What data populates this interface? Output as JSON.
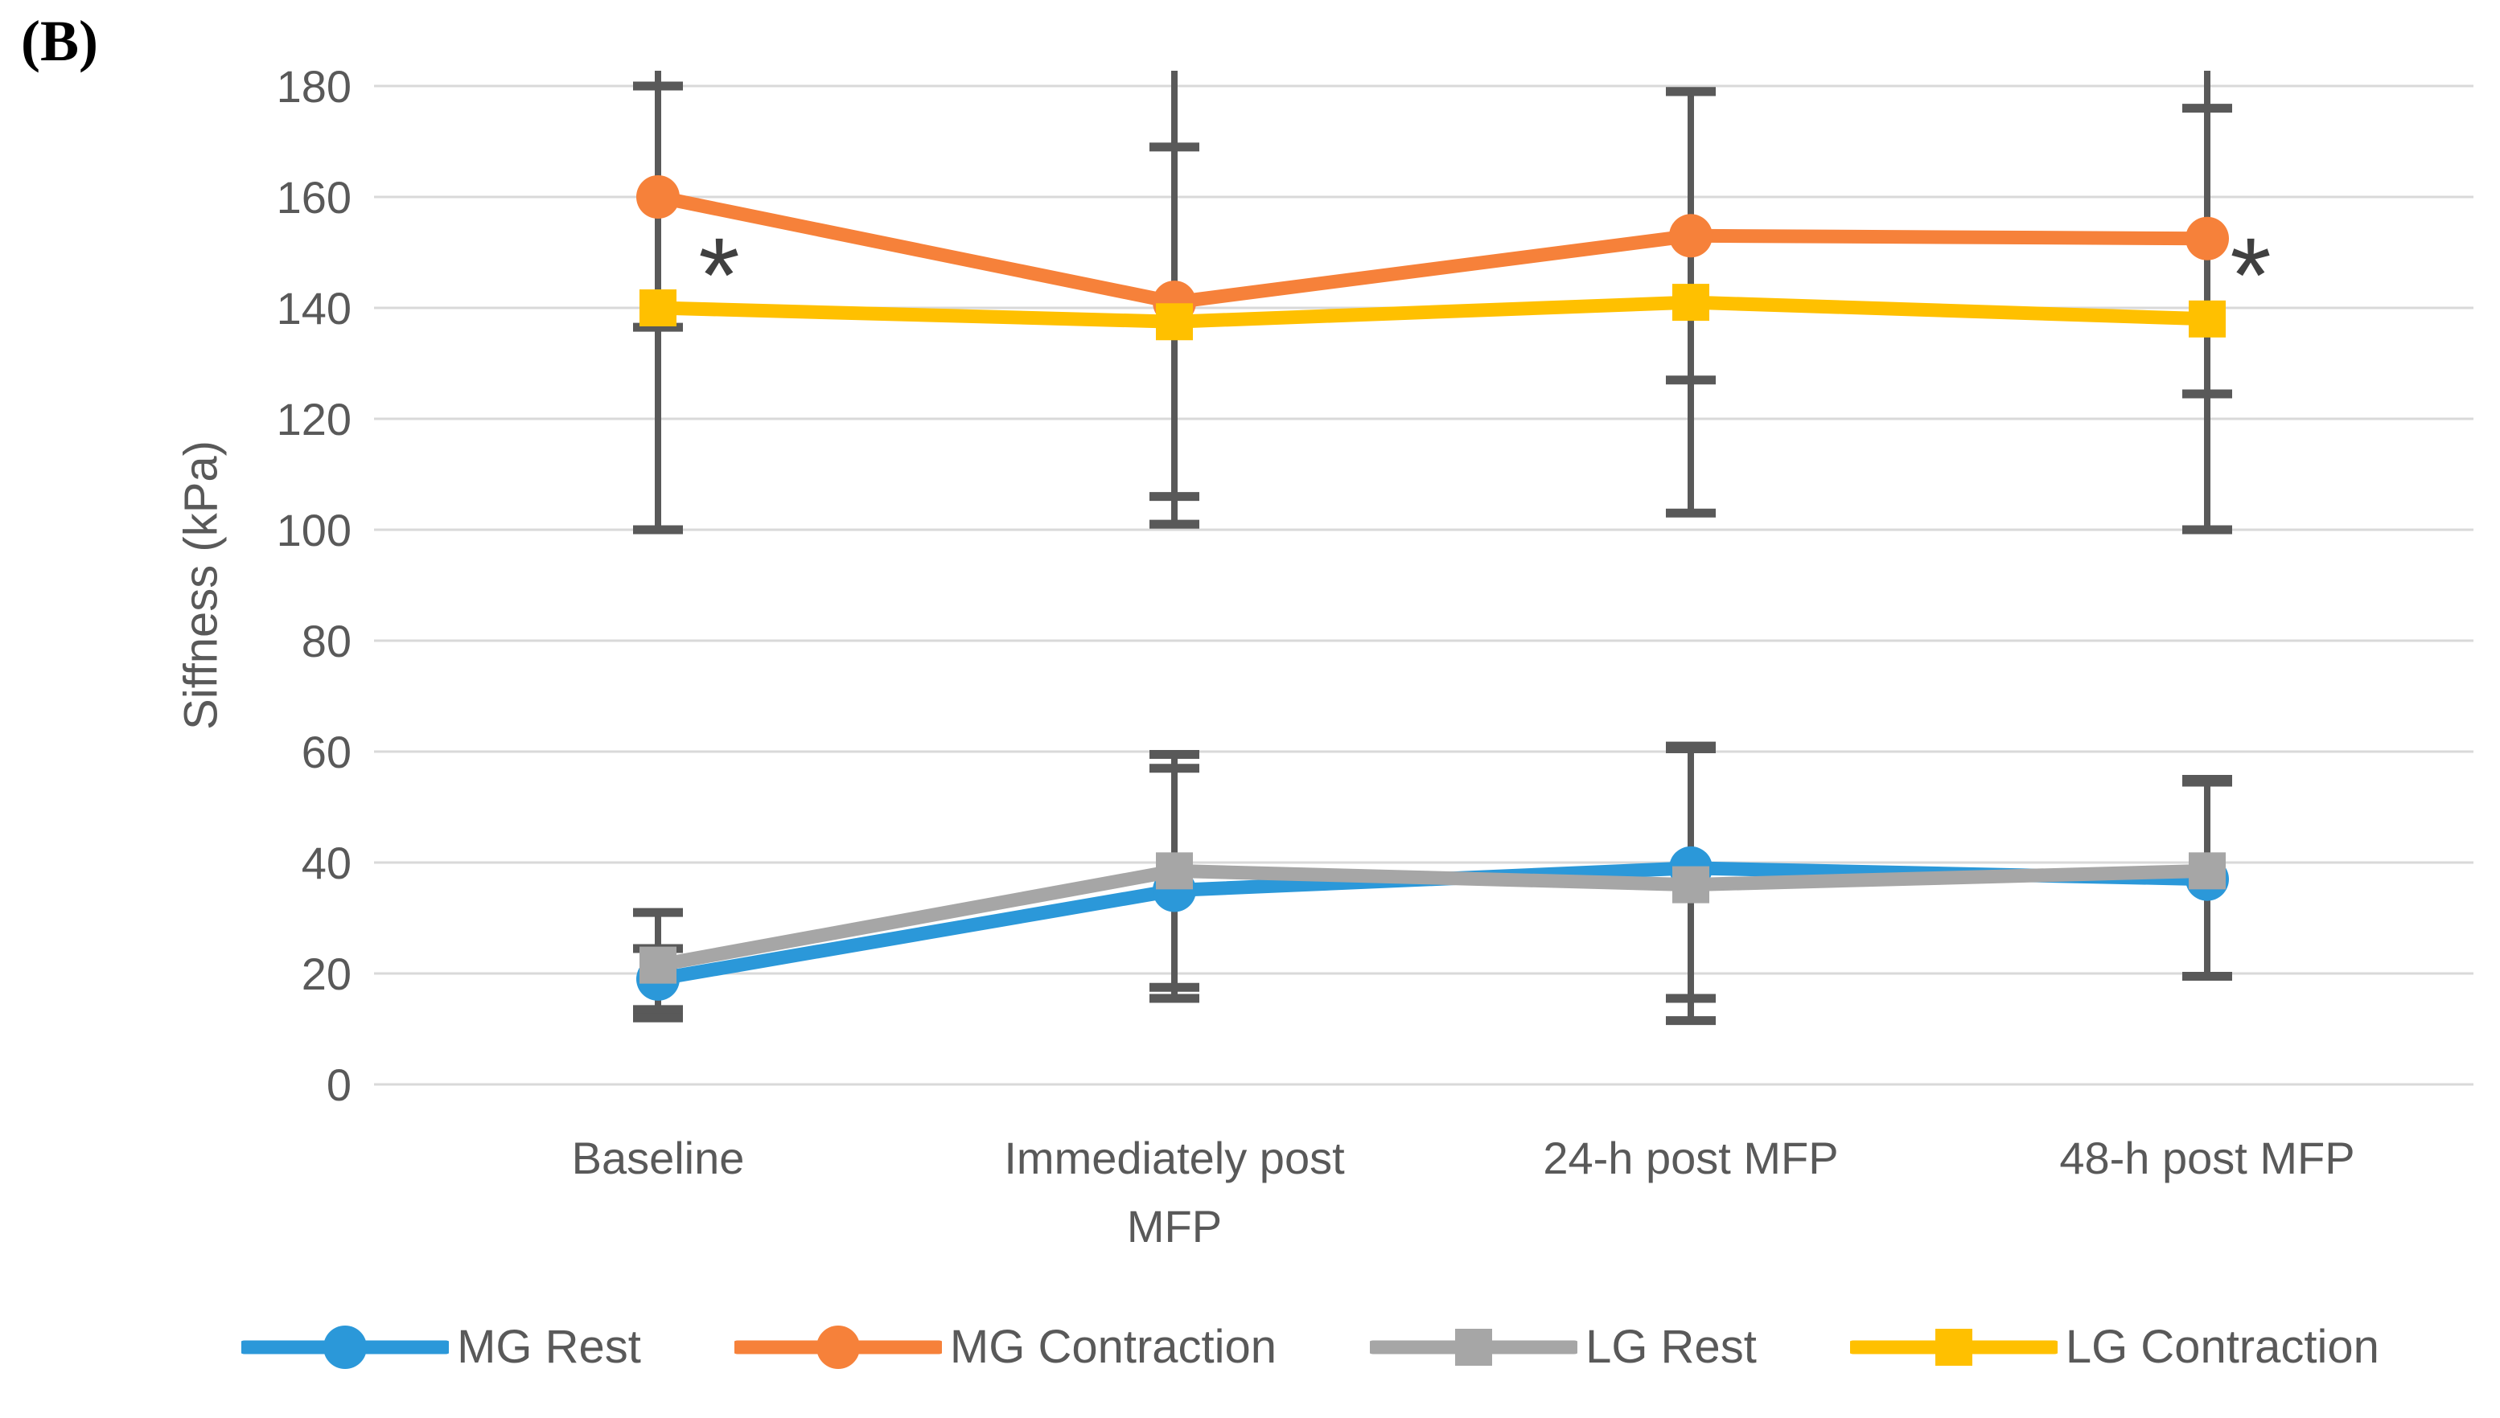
{
  "panel_label": "(B)",
  "y_axis_title": "Siffness (kPa)",
  "colors": {
    "mg_rest": "#2B98D9",
    "mg_contraction": "#F6813A",
    "lg_rest": "#A6A6A6",
    "lg_contraction": "#FFC000",
    "error_bar": "#595959",
    "gridline": "#D9D9D9",
    "tick_text": "#595959",
    "annotation": "#404040"
  },
  "chart_data": {
    "type": "line",
    "title": "",
    "xlabel": "",
    "ylabel": "Siffness (kPa)",
    "ylim": [
      0,
      180
    ],
    "ytick_step": 20,
    "yticks": [
      0,
      20,
      40,
      60,
      80,
      100,
      120,
      140,
      160,
      180
    ],
    "grid": true,
    "legend_position": "bottom",
    "categories": [
      "Baseline",
      "Immediately post MFP",
      "24-h post MFP",
      "48-h post MFP"
    ],
    "category_label_lines": [
      [
        "Baseline"
      ],
      [
        "Immediately post",
        "MFP"
      ],
      [
        "24-h post MFP"
      ],
      [
        "48-h post MFP"
      ]
    ],
    "series": [
      {
        "name": "MG Rest",
        "marker": "circle",
        "color_key": "mg_rest",
        "values": [
          19,
          35,
          39,
          37
        ],
        "err_low": [
          13.5,
          15.5,
          15.5,
          19.5
        ],
        "err_high": [
          24.5,
          57,
          61,
          54.5
        ]
      },
      {
        "name": "MG Contraction",
        "marker": "circle",
        "color_key": "mg_contraction",
        "values": [
          160,
          141,
          153,
          152.5
        ],
        "err_low": [
          136.5,
          101,
          127,
          124.5
        ],
        "err_high": [
          183.5,
          181,
          179,
          180.5
        ]
      },
      {
        "name": "LG Rest",
        "marker": "square",
        "color_key": "lg_rest",
        "values": [
          21.5,
          38.5,
          36,
          38.5
        ],
        "err_low": [
          12,
          17.5,
          11.5,
          19.5
        ],
        "err_high": [
          31,
          59.5,
          60.5,
          55
        ]
      },
      {
        "name": "LG Contraction",
        "marker": "square",
        "color_key": "lg_contraction",
        "values": [
          140,
          137.5,
          141,
          138
        ],
        "err_low": [
          100,
          106,
          103,
          100
        ],
        "err_high": [
          180,
          169,
          179,
          176
        ]
      }
    ],
    "annotations": [
      {
        "text": "*",
        "category_index": 0,
        "value": 148.5,
        "dx": 76
      },
      {
        "text": "*",
        "category_index": 3,
        "value": 148.5,
        "dx": 54
      }
    ]
  }
}
